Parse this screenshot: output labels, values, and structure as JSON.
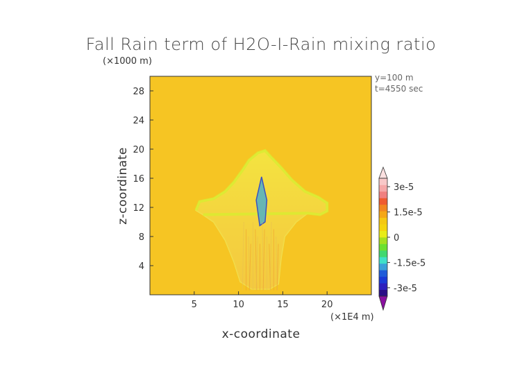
{
  "chart_data": {
    "type": "heatmap",
    "title": "Fall Rain term of H2O-I-Rain mixing ratio",
    "xlabel": "x-coordinate",
    "ylabel": "z-coordinate",
    "x_unit_label": "(×1E4 m)",
    "y_unit_label": "(×1000 m)",
    "xlim": [
      0,
      25
    ],
    "ylim": [
      0,
      30
    ],
    "x_ticks": [
      "5",
      "10",
      "15",
      "20"
    ],
    "y_ticks": [
      "4",
      "8",
      "12",
      "16",
      "20",
      "24",
      "28"
    ],
    "x_tick_values": [
      5,
      10,
      15,
      20
    ],
    "y_tick_values": [
      4,
      8,
      12,
      16,
      20,
      24,
      28
    ],
    "info": [
      "y=100 m",
      "t=4550 sec"
    ],
    "background_value": 0,
    "colorbar": {
      "range": [
        -3.5e-05,
        3.5e-05
      ],
      "tick_labels": [
        "3e-5",
        "1.5e-5",
        "0",
        "-1.5e-5",
        "-3e-5"
      ],
      "tick_values": [
        3e-05,
        1.5e-05,
        0,
        -1.5e-05,
        -3e-05
      ],
      "colors_bottom_to_top": [
        "#2a0e86",
        "#2d1fbd",
        "#1a3ad6",
        "#1f5cd9",
        "#3aa0d8",
        "#3fe0c8",
        "#40d870",
        "#6ce030",
        "#a5e020",
        "#e8ec18",
        "#f5d40e",
        "#f5c812",
        "#f5a716",
        "#f28620",
        "#ef5b30",
        "#f08080",
        "#f5a8a8",
        "#f8c8c8"
      ],
      "extend": "both"
    },
    "cloud_outline_x_z": [
      [
        5.2,
        11.6
      ],
      [
        5.6,
        12.8
      ],
      [
        7.2,
        13.2
      ],
      [
        8.5,
        14.2
      ],
      [
        9.5,
        15.5
      ],
      [
        10.5,
        17.2
      ],
      [
        11.2,
        18.5
      ],
      [
        12.2,
        19.5
      ],
      [
        13.0,
        19.8
      ],
      [
        13.6,
        19.0
      ],
      [
        14.8,
        17.5
      ],
      [
        16.0,
        15.8
      ],
      [
        17.5,
        14.2
      ],
      [
        19.0,
        13.4
      ],
      [
        20.0,
        12.6
      ],
      [
        20.0,
        11.5
      ],
      [
        19.2,
        11.0
      ],
      [
        17.8,
        11.2
      ],
      [
        16.5,
        10.0
      ],
      [
        15.2,
        8.0
      ],
      [
        14.8,
        5.0
      ],
      [
        14.5,
        1.5
      ],
      [
        13.5,
        0.8
      ],
      [
        11.5,
        0.8
      ],
      [
        10.2,
        1.8
      ],
      [
        9.5,
        4.5
      ],
      [
        8.5,
        7.5
      ],
      [
        7.2,
        10.0
      ],
      [
        6.0,
        11.0
      ]
    ],
    "strong_negative_core_x_z": [
      [
        12.0,
        13.0
      ],
      [
        12.6,
        16.2
      ],
      [
        13.2,
        13.0
      ],
      [
        13.0,
        10.0
      ],
      [
        12.4,
        9.5
      ]
    ]
  }
}
